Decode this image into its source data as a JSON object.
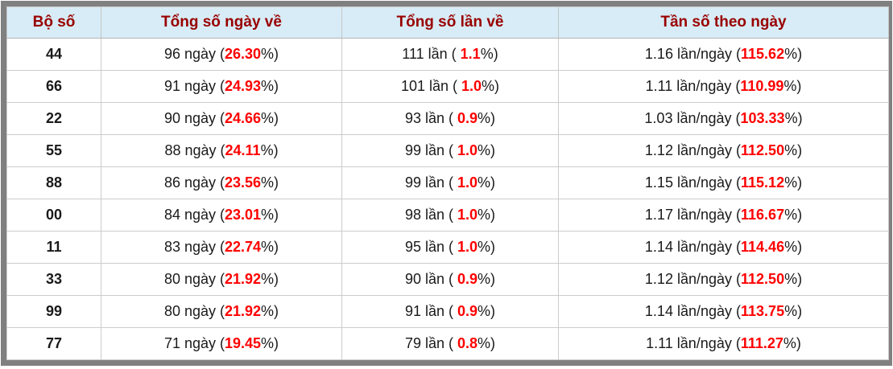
{
  "colors": {
    "outer_border": "#808080",
    "header_background": "#d7ecf6",
    "header_text": "#990000",
    "highlight_red": "#ff0000",
    "grid_line": "#cccccc",
    "body_text": "#1a1a1a"
  },
  "table": {
    "columns": [
      {
        "label": "Bộ số"
      },
      {
        "label": "Tổng số ngày về"
      },
      {
        "label": "Tổng số lần về"
      },
      {
        "label": "Tần số theo ngày"
      }
    ],
    "rows": [
      {
        "set": "44",
        "days": {
          "pre": "96 ngày (",
          "val": "26.30",
          "post": "%)"
        },
        "times": {
          "pre": "111 lần ( ",
          "val": "1.1",
          "post": "%)"
        },
        "freq": {
          "pre": "1.16 lần/ngày (",
          "val": "115.62",
          "post": "%)"
        }
      },
      {
        "set": "66",
        "days": {
          "pre": "91 ngày (",
          "val": "24.93",
          "post": "%)"
        },
        "times": {
          "pre": "101 lần ( ",
          "val": "1.0",
          "post": "%)"
        },
        "freq": {
          "pre": "1.11 lần/ngày (",
          "val": "110.99",
          "post": "%)"
        }
      },
      {
        "set": "22",
        "days": {
          "pre": "90 ngày (",
          "val": "24.66",
          "post": "%)"
        },
        "times": {
          "pre": "93 lần ( ",
          "val": "0.9",
          "post": "%)"
        },
        "freq": {
          "pre": "1.03 lần/ngày (",
          "val": "103.33",
          "post": "%)"
        }
      },
      {
        "set": "55",
        "days": {
          "pre": "88 ngày (",
          "val": "24.11",
          "post": "%)"
        },
        "times": {
          "pre": "99 lần ( ",
          "val": "1.0",
          "post": "%)"
        },
        "freq": {
          "pre": "1.12 lần/ngày (",
          "val": "112.50",
          "post": "%)"
        }
      },
      {
        "set": "88",
        "days": {
          "pre": "86 ngày (",
          "val": "23.56",
          "post": "%)"
        },
        "times": {
          "pre": "99 lần ( ",
          "val": "1.0",
          "post": "%)"
        },
        "freq": {
          "pre": "1.15 lần/ngày (",
          "val": "115.12",
          "post": "%)"
        }
      },
      {
        "set": "00",
        "days": {
          "pre": "84 ngày (",
          "val": "23.01",
          "post": "%)"
        },
        "times": {
          "pre": "98 lần ( ",
          "val": "1.0",
          "post": "%)"
        },
        "freq": {
          "pre": "1.17 lần/ngày (",
          "val": "116.67",
          "post": "%)"
        }
      },
      {
        "set": "11",
        "days": {
          "pre": "83 ngày (",
          "val": "22.74",
          "post": "%)"
        },
        "times": {
          "pre": "95 lần ( ",
          "val": "1.0",
          "post": "%)"
        },
        "freq": {
          "pre": "1.14 lần/ngày (",
          "val": "114.46",
          "post": "%)"
        }
      },
      {
        "set": "33",
        "days": {
          "pre": "80 ngày (",
          "val": "21.92",
          "post": "%)"
        },
        "times": {
          "pre": "90 lần ( ",
          "val": "0.9",
          "post": "%)"
        },
        "freq": {
          "pre": "1.12 lần/ngày (",
          "val": "112.50",
          "post": "%)"
        }
      },
      {
        "set": "99",
        "days": {
          "pre": "80 ngày (",
          "val": "21.92",
          "post": "%)"
        },
        "times": {
          "pre": "91 lần ( ",
          "val": "0.9",
          "post": "%)"
        },
        "freq": {
          "pre": "1.14 lần/ngày (",
          "val": "113.75",
          "post": "%)"
        }
      },
      {
        "set": "77",
        "days": {
          "pre": "71 ngày (",
          "val": "19.45",
          "post": "%)"
        },
        "times": {
          "pre": "79 lần ( ",
          "val": "0.8",
          "post": "%)"
        },
        "freq": {
          "pre": "1.11 lần/ngày (",
          "val": "111.27",
          "post": "%)"
        }
      }
    ]
  }
}
